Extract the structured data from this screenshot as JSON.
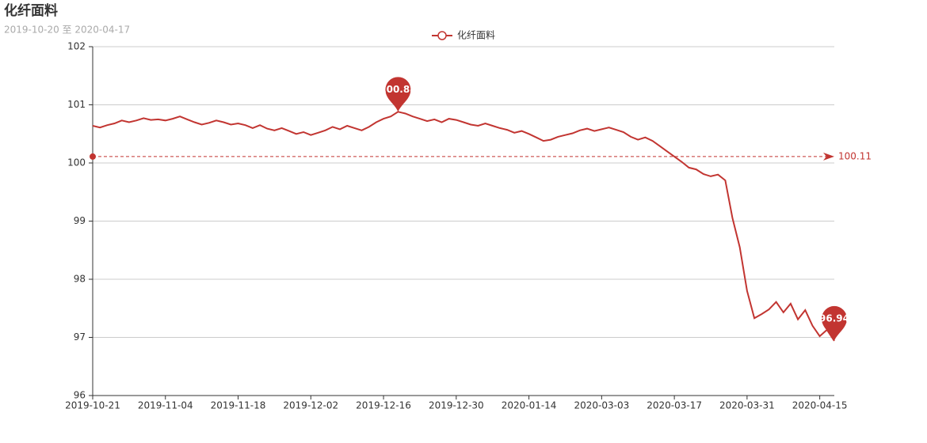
{
  "chart_data": {
    "type": "line",
    "title": "化纤面料",
    "subtitle": "2019-10-20 至 2020-04-17",
    "categories": [
      "2019-10-21",
      null,
      null,
      null,
      null,
      null,
      null,
      null,
      null,
      null,
      "2019-11-04",
      null,
      null,
      null,
      null,
      null,
      null,
      null,
      null,
      null,
      "2019-11-18",
      null,
      null,
      null,
      null,
      null,
      null,
      null,
      null,
      null,
      "2019-12-02",
      null,
      null,
      null,
      null,
      null,
      null,
      null,
      null,
      null,
      "2019-12-16",
      null,
      null,
      null,
      null,
      null,
      null,
      null,
      null,
      null,
      "2019-12-30",
      null,
      null,
      null,
      null,
      null,
      null,
      null,
      null,
      null,
      "2020-01-14",
      null,
      null,
      null,
      null,
      null,
      null,
      null,
      null,
      null,
      "2020-03-03",
      null,
      null,
      null,
      null,
      null,
      null,
      null,
      null,
      null,
      "2020-03-17",
      null,
      null,
      null,
      null,
      null,
      null,
      null,
      null,
      null,
      "2020-03-31",
      null,
      null,
      null,
      null,
      null,
      null,
      null,
      null,
      null,
      "2020-04-15",
      null,
      null
    ],
    "series": [
      {
        "name": "化纤面料",
        "color": "#c23531",
        "values": [
          100.64,
          100.61,
          100.65,
          100.68,
          100.73,
          100.7,
          100.73,
          100.77,
          100.74,
          100.75,
          100.73,
          100.76,
          100.8,
          100.75,
          100.7,
          100.66,
          100.69,
          100.73,
          100.7,
          100.66,
          100.68,
          100.65,
          100.6,
          100.65,
          100.59,
          100.56,
          100.6,
          100.55,
          100.5,
          100.53,
          100.48,
          100.52,
          100.56,
          100.62,
          100.58,
          100.64,
          100.6,
          100.56,
          100.62,
          100.7,
          100.76,
          100.8,
          100.88,
          100.85,
          100.8,
          100.76,
          100.72,
          100.75,
          100.7,
          100.76,
          100.74,
          100.7,
          100.66,
          100.64,
          100.68,
          100.64,
          100.6,
          100.57,
          100.52,
          100.55,
          100.5,
          100.44,
          100.38,
          100.4,
          100.45,
          100.48,
          100.51,
          100.56,
          100.59,
          100.55,
          100.58,
          100.61,
          100.57,
          100.53,
          100.45,
          100.4,
          100.44,
          100.38,
          100.29,
          100.2,
          100.11,
          100.02,
          99.92,
          99.89,
          99.81,
          99.77,
          99.8,
          99.7,
          99.05,
          98.55,
          97.8,
          97.33,
          97.4,
          97.48,
          97.61,
          97.43,
          97.58,
          97.31,
          97.47,
          97.2,
          97.02,
          97.13,
          96.94
        ]
      }
    ],
    "max_index": 42,
    "min_index": 102,
    "average": 100.11,
    "ylim": [
      96,
      102
    ],
    "yticks": [
      96,
      97,
      98,
      99,
      100,
      101,
      102
    ],
    "grid": true
  }
}
